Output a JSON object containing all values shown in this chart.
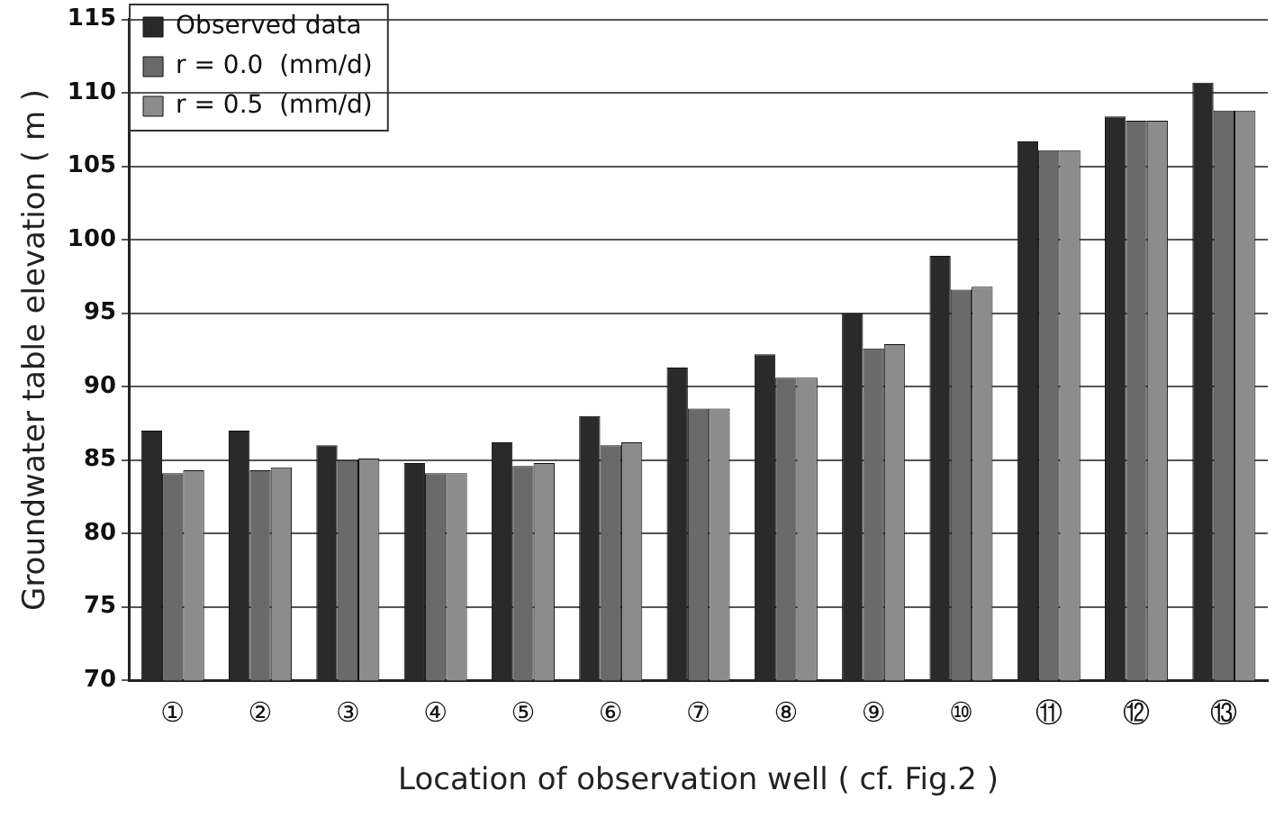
{
  "chart_data": {
    "type": "bar",
    "xlabel": "Location of observation well ( cf. Fig.2 )",
    "ylabel": "Groundwater table elevation ( m )",
    "categories": [
      "①",
      "②",
      "③",
      "④",
      "⑤",
      "⑥",
      "⑦",
      "⑧",
      "⑨",
      "⑩",
      "⑪",
      "⑫",
      "⑬"
    ],
    "series": [
      {
        "name": "Observed data",
        "color": "#2a2a2a",
        "values": [
          87,
          87,
          86,
          84.8,
          86.2,
          88,
          91.3,
          92.2,
          95,
          98.9,
          106.7,
          108.4,
          110.7
        ]
      },
      {
        "name": "r = 0.0  (mm/d)",
        "color": "#6a6a6a",
        "values": [
          84.1,
          84.3,
          85,
          84.1,
          84.6,
          86,
          88.5,
          90.6,
          92.6,
          96.6,
          106.1,
          108.1,
          108.8
        ]
      },
      {
        "name": "r = 0.5  (mm/d)",
        "color": "#8c8c8c",
        "values": [
          84.3,
          84.5,
          85.1,
          84.1,
          84.8,
          86.2,
          88.5,
          90.6,
          92.9,
          96.8,
          106.1,
          108.1,
          108.8
        ]
      }
    ],
    "ylim": [
      70,
      115
    ],
    "yticks": [
      70,
      75,
      80,
      85,
      90,
      95,
      100,
      105,
      110,
      115
    ],
    "grid": "y",
    "legend": "top left"
  }
}
